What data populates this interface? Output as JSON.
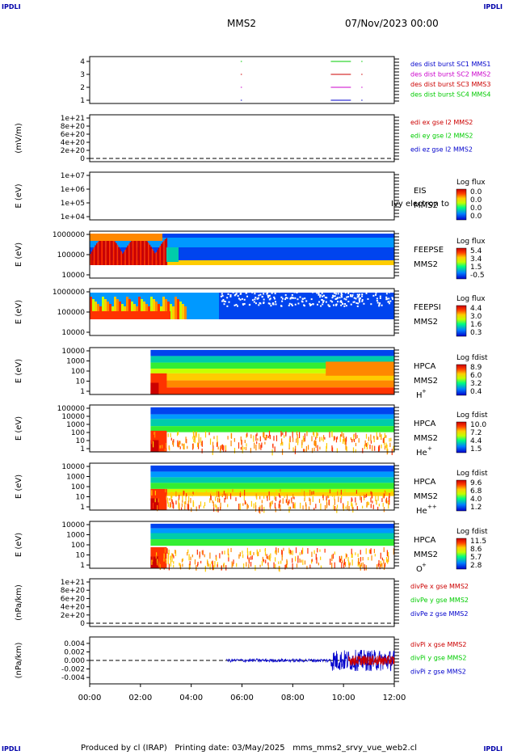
{
  "header": {
    "corner_label": "IPDLI",
    "spacecraft": "MMS2",
    "datetime": "07/Nov/2023 00:00"
  },
  "footer": {
    "text": "Produced by cl (IRAP)   Printing date: 03/May/2025   mms_mms2_srvy_vue_web2.cl"
  },
  "colors": {
    "blue": "#0000cc",
    "green": "#00cc00",
    "red": "#cc0000",
    "magenta": "#cc00cc"
  },
  "chart_data": [
    {
      "type": "scatter",
      "panel": "burst",
      "ytick_labels": [
        "1",
        "2",
        "3",
        "4"
      ],
      "legend": [
        {
          "label": "des dist burst SC1 MMS1",
          "color": "#0000cc"
        },
        {
          "label": "des dist burst SC2 MMS2",
          "color": "#cc00cc"
        },
        {
          "label": "des dist burst SC3 MMS3",
          "color": "#cc0000"
        },
        {
          "label": "des dist burst SC4 MMS4",
          "color": "#00cc00"
        }
      ],
      "x_hours": [
        5.95,
        9.5,
        9.6,
        9.7,
        9.8,
        9.9,
        10.0,
        10.1,
        10.7
      ],
      "levels": [
        1,
        2,
        3,
        4
      ]
    },
    {
      "type": "line",
      "panel": "edi",
      "ylabel": "(mV/m)",
      "ytick_labels": [
        "0",
        "2e+20",
        "4e+20",
        "6e+20",
        "8e+20",
        "1e+21"
      ],
      "legend": [
        {
          "label": "edi ex gse l2 MMS2",
          "color": "#cc0000"
        },
        {
          "label": "edi ey gse l2 MMS2",
          "color": "#00cc00"
        },
        {
          "label": "edi ez gse l2 MMS2",
          "color": "#0000cc"
        }
      ]
    },
    {
      "type": "heatmap",
      "panel": "eis",
      "ylabel": "E (eV)",
      "ytick_labels": [
        "1e+04",
        "1e+05",
        "1e+06",
        "1e+07"
      ],
      "instrument": "EIS",
      "sc": "MMS2",
      "overlay_text": "Ivy electron to",
      "cbar_title": "Log flux",
      "cbar_ticks": [
        "0.0",
        "0.0",
        "0.0",
        "0.0"
      ]
    },
    {
      "type": "heatmap",
      "panel": "feepse",
      "ylabel": "E (eV)",
      "ytick_labels": [
        "10000",
        "100000",
        "1000000"
      ],
      "instrument": "FEEPSE",
      "sc": "MMS2",
      "cbar_title": "Log flux",
      "cbar_ticks": [
        "5.4",
        "3.4",
        "1.5",
        "-0.5"
      ]
    },
    {
      "type": "heatmap",
      "panel": "feepsi",
      "ylabel": "E (eV)",
      "ytick_labels": [
        "10000",
        "100000",
        "1000000"
      ],
      "instrument": "FEEPSI",
      "sc": "MMS2",
      "cbar_title": "Log flux",
      "cbar_ticks": [
        "4.4",
        "3.0",
        "1.6",
        "0.3"
      ]
    },
    {
      "type": "heatmap",
      "panel": "hpca_h",
      "ylabel": "E (eV)",
      "ytick_labels": [
        "1",
        "10",
        "100",
        "1000",
        "10000"
      ],
      "instrument": "HPCA",
      "sc": "MMS2",
      "species": "H",
      "charge": "+",
      "cbar_title": "Log fdist",
      "cbar_ticks": [
        "8.9",
        "6.0",
        "3.2",
        "0.4"
      ]
    },
    {
      "type": "heatmap",
      "panel": "hpca_he",
      "ylabel": "E (eV)",
      "ytick_labels": [
        "1",
        "10",
        "100",
        "1000",
        "10000",
        "100000"
      ],
      "instrument": "HPCA",
      "sc": "MMS2",
      "species": "He",
      "charge": "+",
      "cbar_title": "Log fdist",
      "cbar_ticks": [
        "10.0",
        "7.2",
        "4.4",
        "1.5"
      ]
    },
    {
      "type": "heatmap",
      "panel": "hpca_hepp",
      "ylabel": "E (eV)",
      "ytick_labels": [
        "1",
        "10",
        "100",
        "1000",
        "10000"
      ],
      "instrument": "HPCA",
      "sc": "MMS2",
      "species": "He",
      "charge": "++",
      "cbar_title": "Log fdist",
      "cbar_ticks": [
        "9.6",
        "6.8",
        "4.0",
        "1.2"
      ]
    },
    {
      "type": "heatmap",
      "panel": "hpca_o",
      "ylabel": "E (eV)",
      "ytick_labels": [
        "1",
        "10",
        "100",
        "1000",
        "10000"
      ],
      "instrument": "HPCA",
      "sc": "MMS2",
      "species": "O",
      "charge": "+",
      "cbar_title": "Log fdist",
      "cbar_ticks": [
        "11.5",
        "8.6",
        "5.7",
        "2.8"
      ]
    },
    {
      "type": "line",
      "panel": "divpe",
      "ylabel": "(nPa/km)",
      "ytick_labels": [
        "0",
        "2e+20",
        "4e+20",
        "6e+20",
        "8e+20",
        "1e+21"
      ],
      "legend": [
        {
          "label": "divPe x gse MMS2",
          "color": "#cc0000"
        },
        {
          "label": "divPe y gse MMS2",
          "color": "#00cc00"
        },
        {
          "label": "divPe z gse MMS2",
          "color": "#0000cc"
        }
      ]
    },
    {
      "type": "line",
      "panel": "divpi",
      "ylabel": "(nPa/km)",
      "ytick_labels": [
        "-0.004",
        "-0.002",
        "0.000",
        "0.002",
        "0.004"
      ],
      "yticks": [
        -0.004,
        -0.002,
        0.0,
        0.002,
        0.004
      ],
      "ylim": [
        -0.0055,
        0.0055
      ],
      "legend": [
        {
          "label": "divPi x gse MMS2",
          "color": "#cc0000"
        },
        {
          "label": "divPi y gse MMS2",
          "color": "#00cc00"
        },
        {
          "label": "divPi z gse MMS2",
          "color": "#0000cc"
        }
      ],
      "segments": [
        {
          "color": "#0000cc",
          "x_start": 5.4,
          "x_end": 9.5,
          "amplitude": 0.0004
        },
        {
          "color": "#0000cc",
          "x_start": 9.5,
          "x_end": 12.0,
          "amplitude": 0.0025
        },
        {
          "color": "#cc0000",
          "x_start": 10.2,
          "x_end": 12.0,
          "amplitude": 0.0012
        }
      ]
    }
  ],
  "x_axis": {
    "tick_labels": [
      "00:00",
      "02:00",
      "04:00",
      "06:00",
      "08:00",
      "10:00",
      "12:00"
    ],
    "range_hours": [
      0,
      12
    ]
  }
}
